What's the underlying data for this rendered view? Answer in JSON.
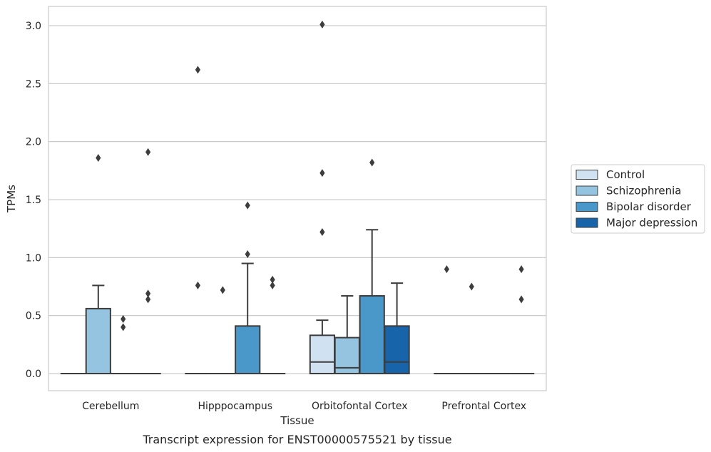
{
  "chart_data": {
    "type": "box",
    "title": "",
    "caption": "Transcript expression for ENST00000575521 by tissue",
    "xlabel": "Tissue",
    "ylabel": "TPMs",
    "ylim": [
      -0.15,
      3.17
    ],
    "yticks": [
      "0.0",
      "0.5",
      "1.0",
      "1.5",
      "2.0",
      "2.5",
      "3.0"
    ],
    "ytick_values": [
      0,
      0.5,
      1.0,
      1.5,
      2.0,
      2.5,
      3.0
    ],
    "grid": "horizontal",
    "legend_position": "right",
    "categories": [
      "Cerebellum",
      "Hipppocampus",
      "Orbitofontal Cortex",
      "Prefrontal Cortex"
    ],
    "series": [
      {
        "name": "Control",
        "color": "#d0e1f2",
        "boxes": [
          {
            "q1": 0,
            "median": 0,
            "q3": 0,
            "whisker_low": 0,
            "whisker_high": 0,
            "outliers": []
          },
          {
            "q1": 0,
            "median": 0,
            "q3": 0,
            "whisker_low": 0,
            "whisker_high": 0,
            "outliers": [
              0.76,
              2.62
            ]
          },
          {
            "q1": 0,
            "median": 0.1,
            "q3": 0.33,
            "whisker_low": 0,
            "whisker_high": 0.46,
            "outliers": [
              1.22,
              1.73,
              3.01
            ]
          },
          {
            "q1": 0,
            "median": 0,
            "q3": 0,
            "whisker_low": 0,
            "whisker_high": 0,
            "outliers": [
              0.9
            ]
          }
        ]
      },
      {
        "name": "Schizophrenia",
        "color": "#94c4df",
        "boxes": [
          {
            "q1": 0,
            "median": 0,
            "q3": 0.56,
            "whisker_low": 0,
            "whisker_high": 0.76,
            "outliers": [
              1.86
            ]
          },
          {
            "q1": 0,
            "median": 0,
            "q3": 0,
            "whisker_low": 0,
            "whisker_high": 0,
            "outliers": [
              0.72
            ]
          },
          {
            "q1": 0,
            "median": 0.05,
            "q3": 0.31,
            "whisker_low": 0,
            "whisker_high": 0.67,
            "outliers": []
          },
          {
            "q1": 0,
            "median": 0,
            "q3": 0,
            "whisker_low": 0,
            "whisker_high": 0,
            "outliers": [
              0.75
            ]
          }
        ]
      },
      {
        "name": "Bipolar disorder",
        "color": "#4a98c9",
        "boxes": [
          {
            "q1": 0,
            "median": 0,
            "q3": 0,
            "whisker_low": 0,
            "whisker_high": 0,
            "outliers": [
              0.4,
              0.47
            ]
          },
          {
            "q1": 0,
            "median": 0,
            "q3": 0.41,
            "whisker_low": 0,
            "whisker_high": 0.95,
            "outliers": [
              1.03,
              1.45
            ]
          },
          {
            "q1": 0,
            "median": 0,
            "q3": 0.67,
            "whisker_low": 0,
            "whisker_high": 1.24,
            "outliers": [
              1.82
            ]
          },
          {
            "q1": 0,
            "median": 0,
            "q3": 0,
            "whisker_low": 0,
            "whisker_high": 0,
            "outliers": []
          }
        ]
      },
      {
        "name": "Major depression",
        "color": "#1764ab",
        "boxes": [
          {
            "q1": 0,
            "median": 0,
            "q3": 0,
            "whisker_low": 0,
            "whisker_high": 0,
            "outliers": [
              0.64,
              0.69,
              1.91
            ]
          },
          {
            "q1": 0,
            "median": 0,
            "q3": 0,
            "whisker_low": 0,
            "whisker_high": 0,
            "outliers": [
              0.76,
              0.81
            ]
          },
          {
            "q1": 0,
            "median": 0.1,
            "q3": 0.41,
            "whisker_low": 0,
            "whisker_high": 0.78,
            "outliers": []
          },
          {
            "q1": 0,
            "median": 0,
            "q3": 0,
            "whisker_low": 0,
            "whisker_high": 0,
            "outliers": [
              0.64,
              0.9
            ]
          }
        ]
      }
    ]
  }
}
